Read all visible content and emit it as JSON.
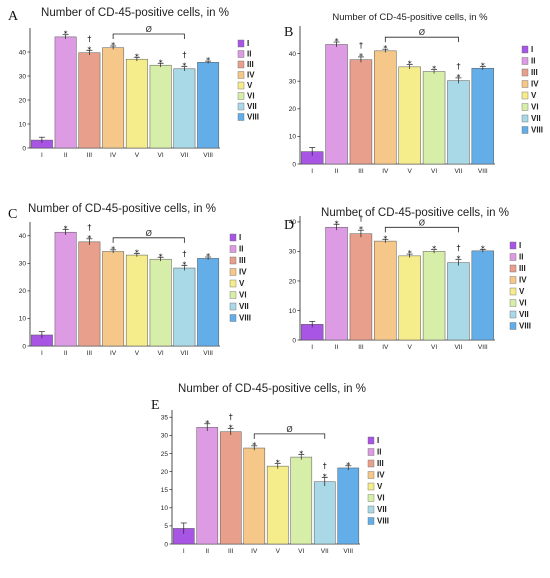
{
  "legend_colors": [
    "#a855e6",
    "#dc9be3",
    "#e8a08c",
    "#f5c88a",
    "#f5ec8c",
    "#d7eea8",
    "#a9d8e6",
    "#63aee8"
  ],
  "annotation": "Ø",
  "chart_data": [
    {
      "type": "bar",
      "panel": "A",
      "title": "Number of CD-45-positive cells, in %",
      "categories": [
        "I",
        "II",
        "III",
        "IV",
        "V",
        "VI",
        "VII",
        "VIII"
      ],
      "values": [
        3.3,
        46.3,
        39.7,
        41.8,
        37.0,
        34.5,
        33.0,
        35.7
      ],
      "errors": [
        1.2,
        0.9,
        1.0,
        0.7,
        0.8,
        0.8,
        0.9,
        0.5
      ],
      "ylim": [
        0,
        50
      ],
      "yticks": [
        "0",
        "10",
        "20",
        "30",
        "40"
      ],
      "marks": [
        "",
        "*",
        "†\n*",
        "*",
        "*",
        "*",
        "†\n*",
        "*"
      ],
      "bracket": [
        3,
        6
      ],
      "legend": [
        "I",
        "II",
        "III",
        "IV",
        "V",
        "VI",
        "VII",
        "VIII"
      ]
    },
    {
      "type": "bar",
      "panel": "B",
      "title": "Number of CD-45-positive cells, in %",
      "categories": [
        "I",
        "II",
        "III",
        "IV",
        "V",
        "VI",
        "VII",
        "VIII"
      ],
      "values": [
        4.5,
        43.3,
        37.8,
        41.0,
        35.2,
        33.5,
        30.2,
        34.7
      ],
      "errors": [
        1.5,
        0.9,
        1.0,
        0.6,
        0.8,
        0.7,
        1.0,
        0.6
      ],
      "ylim": [
        0,
        50
      ],
      "yticks": [
        "0",
        "10",
        "20",
        "30",
        "40"
      ],
      "marks": [
        "",
        "*",
        "†\n*",
        "*",
        "*",
        "*",
        "†\n*",
        "*"
      ],
      "bracket": [
        3,
        6
      ],
      "legend": [
        "I",
        "II",
        "III",
        "IV",
        "V",
        "VI",
        "VII",
        "VIII"
      ]
    },
    {
      "type": "bar",
      "panel": "C",
      "title": "Number of CD-45-positive cells, in %",
      "categories": [
        "I",
        "II",
        "III",
        "IV",
        "V",
        "VI",
        "VII",
        "VIII"
      ],
      "values": [
        4.0,
        41.3,
        37.8,
        34.3,
        33.0,
        31.5,
        28.3,
        31.8
      ],
      "errors": [
        1.2,
        1.0,
        1.1,
        0.6,
        0.6,
        0.7,
        0.9,
        0.5
      ],
      "ylim": [
        0,
        45
      ],
      "yticks": [
        "0",
        "10",
        "20",
        "30",
        "40"
      ],
      "marks": [
        "",
        "*",
        "†\n*",
        "*",
        "*",
        "*",
        "†\n*",
        "*"
      ],
      "bracket": [
        3,
        6
      ],
      "legend": [
        "I",
        "II",
        "III",
        "IV",
        "V",
        "VI",
        "VII",
        "VIII"
      ]
    },
    {
      "type": "bar",
      "panel": "D",
      "title": "Number of CD-45-positive cells, in %",
      "categories": [
        "I",
        "II",
        "III",
        "IV",
        "V",
        "VI",
        "VII",
        "VIII"
      ],
      "values": [
        5.3,
        38.2,
        36.0,
        33.5,
        28.5,
        30.0,
        26.2,
        30.2
      ],
      "errors": [
        1.0,
        1.0,
        1.2,
        0.6,
        0.6,
        0.6,
        1.0,
        0.5
      ],
      "ylim": [
        0,
        42
      ],
      "yticks": [
        "0",
        "10",
        "20",
        "30",
        "40"
      ],
      "marks": [
        "",
        "*",
        "†\n*",
        "*",
        "*",
        "*",
        "†\n*",
        "*"
      ],
      "bracket": [
        3,
        6
      ],
      "legend": [
        "I",
        "II",
        "III",
        "IV",
        "V",
        "VI",
        "VII",
        "VIII"
      ]
    },
    {
      "type": "bar",
      "panel": "E",
      "title": "Number of CD-45-positive cells, in %",
      "categories": [
        "I",
        "II",
        "III",
        "IV",
        "V",
        "VI",
        "VII",
        "VIII"
      ],
      "values": [
        4.3,
        32.2,
        31.0,
        26.5,
        21.5,
        24.0,
        17.2,
        21.0
      ],
      "errors": [
        1.5,
        1.0,
        0.9,
        0.6,
        0.7,
        0.7,
        1.2,
        0.6
      ],
      "ylim": [
        0,
        37
      ],
      "yticks": [
        "0",
        "5",
        "10",
        "15",
        "20",
        "25",
        "30",
        "35"
      ],
      "marks": [
        "",
        "*",
        "†\n*",
        "*",
        "*",
        "*",
        "†\n*",
        "*"
      ],
      "bracket": [
        3,
        6
      ],
      "legend": [
        "I",
        "II",
        "III",
        "IV",
        "V",
        "VI",
        "VII",
        "VIII"
      ]
    }
  ]
}
